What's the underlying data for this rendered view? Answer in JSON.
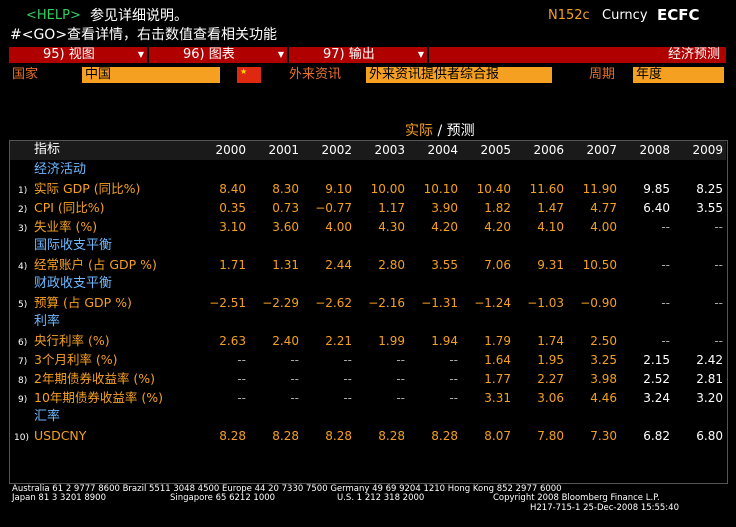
{
  "header": {
    "help_key": "<HELP>",
    "help_text": "参见详细说明。",
    "code": "N152c",
    "market": "Curncy",
    "function": "ECFC",
    "hint": "#<GO>查看详情，右击数值查看相关功能"
  },
  "tabs": [
    "95) 视图",
    "96) 图表",
    "97) 输出"
  ],
  "page_title": "经济预测",
  "filters": {
    "country_label": "国家",
    "country": "中国",
    "source_label": "外来资讯",
    "source": "外来资讯提供者综合报",
    "period_label": "周期",
    "period": "年度"
  },
  "table": {
    "legend_actual": "实际",
    "legend_sep": "/",
    "legend_forecast": "预测",
    "indicator_header": "指标",
    "years": [
      "2000",
      "2001",
      "2002",
      "2003",
      "2004",
      "2005",
      "2006",
      "2007",
      "2008",
      "2009"
    ],
    "sections": [
      {
        "title": "经济活动",
        "rows": [
          {
            "num": "1)",
            "name": "实际 GDP (同比%)",
            "values": [
              "8.40",
              "8.30",
              "9.10",
              "10.00",
              "10.10",
              "10.40",
              "11.60",
              "11.90",
              "9.85",
              "8.25"
            ]
          },
          {
            "num": "2)",
            "name": "CPI (同比%)",
            "values": [
              "0.35",
              "0.73",
              "−0.77",
              "1.17",
              "3.90",
              "1.82",
              "1.47",
              "4.77",
              "6.40",
              "3.55"
            ]
          },
          {
            "num": "3)",
            "name": "失业率 (%)",
            "values": [
              "3.10",
              "3.60",
              "4.00",
              "4.30",
              "4.20",
              "4.20",
              "4.10",
              "4.00",
              "--",
              "--"
            ]
          }
        ]
      },
      {
        "title": "国际收支平衡",
        "rows": [
          {
            "num": "4)",
            "name": "经常账户 (占 GDP %)",
            "values": [
              "1.71",
              "1.31",
              "2.44",
              "2.80",
              "3.55",
              "7.06",
              "9.31",
              "10.50",
              "--",
              "--"
            ]
          }
        ]
      },
      {
        "title": "财政收支平衡",
        "rows": [
          {
            "num": "5)",
            "name": "预算 (占 GDP %)",
            "values": [
              "−2.51",
              "−2.29",
              "−2.62",
              "−2.16",
              "−1.31",
              "−1.24",
              "−1.03",
              "−0.90",
              "--",
              "--"
            ]
          }
        ]
      },
      {
        "title": "利率",
        "rows": [
          {
            "num": "6)",
            "name": "央行利率 (%)",
            "values": [
              "2.63",
              "2.40",
              "2.21",
              "1.99",
              "1.94",
              "1.79",
              "1.74",
              "2.50",
              "--",
              "--"
            ]
          },
          {
            "num": "7)",
            "name": "3个月利率 (%)",
            "values": [
              "--",
              "--",
              "--",
              "--",
              "--",
              "1.64",
              "1.95",
              "3.25",
              "2.15",
              "2.42"
            ]
          },
          {
            "num": "8)",
            "name": "2年期债券收益率 (%)",
            "values": [
              "--",
              "--",
              "--",
              "--",
              "--",
              "1.77",
              "2.27",
              "3.98",
              "2.52",
              "2.81"
            ]
          },
          {
            "num": "9)",
            "name": "10年期债券收益率 (%)",
            "values": [
              "--",
              "--",
              "--",
              "--",
              "--",
              "3.31",
              "3.06",
              "4.46",
              "3.24",
              "3.20"
            ]
          }
        ]
      },
      {
        "title": "汇率",
        "rows": [
          {
            "num": "10)",
            "name": "USDCNY",
            "values": [
              "8.28",
              "8.28",
              "8.28",
              "8.28",
              "8.28",
              "8.07",
              "7.80",
              "7.30",
              "6.82",
              "6.80"
            ]
          }
        ]
      }
    ]
  },
  "footer": {
    "line1": "Australia 61 2 9777 8600 Brazil 5511 3048 4500 Europe 44 20 7330 7500 Germany 49 69 9204 1210 Hong Kong 852 2977 6000",
    "line2": [
      "Japan 81 3 3201 8900",
      "Singapore 65 6212 1000",
      "U.S. 1 212 318 2000",
      "Copyright 2008 Bloomberg Finance L.P."
    ],
    "stamp": "H217-715-1 25-Dec-2008 15:55:40"
  }
}
